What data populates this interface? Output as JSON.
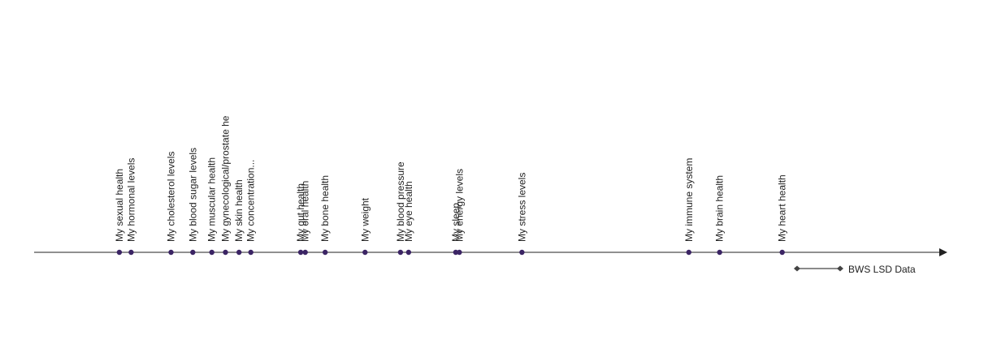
{
  "chart_data": {
    "type": "scatter",
    "title": "",
    "xlabel": "",
    "ylabel": "",
    "grid": false,
    "legend_position": "bottom-right",
    "colors": {
      "point": "#3b2464",
      "axis": "#222222",
      "legend_line": "#444444"
    },
    "legend": {
      "label": "BWS LSD Data"
    },
    "points": [
      {
        "label": "My sexual health",
        "x": 0.094
      },
      {
        "label": "My hormonal levels",
        "x": 0.107
      },
      {
        "label": "My cholesterol levels",
        "x": 0.151
      },
      {
        "label": "My blood sugar levels",
        "x": 0.175
      },
      {
        "label": "My muscular health",
        "x": 0.196
      },
      {
        "label": "My gynecological/prostate he",
        "x": 0.211
      },
      {
        "label": "My skin health",
        "x": 0.226
      },
      {
        "label": "My concentration...",
        "x": 0.239
      },
      {
        "label": "My gut health",
        "x": 0.294
      },
      {
        "label": "My oral health",
        "x": 0.299
      },
      {
        "label": "My bone health",
        "x": 0.321
      },
      {
        "label": "My weight",
        "x": 0.365
      },
      {
        "label": "My blood pressure",
        "x": 0.404
      },
      {
        "label": "My eye health",
        "x": 0.413
      },
      {
        "label": "My sleep",
        "x": 0.465
      },
      {
        "label": "My energy levels",
        "x": 0.469
      },
      {
        "label": "My stress levels",
        "x": 0.538
      },
      {
        "label": "My immune system",
        "x": 0.722
      },
      {
        "label": "My brain health",
        "x": 0.756
      },
      {
        "label": "My heart health",
        "x": 0.825
      }
    ]
  }
}
